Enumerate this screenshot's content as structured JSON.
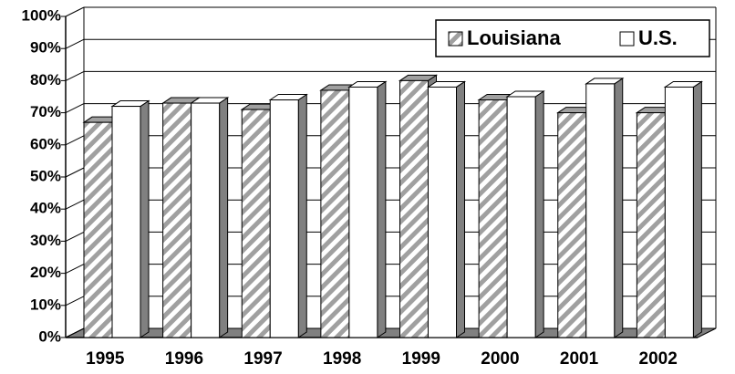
{
  "chart_data": {
    "type": "bar3d",
    "categories": [
      "1995",
      "1996",
      "1997",
      "1998",
      "1999",
      "2000",
      "2001",
      "2002"
    ],
    "series": [
      {
        "name": "Louisiana",
        "color": "#a0a0a0",
        "values": [
          67,
          73,
          71,
          77,
          80,
          74,
          70,
          70
        ]
      },
      {
        "name": "U.S.",
        "color": "#ffffff",
        "values": [
          72,
          73,
          74,
          78,
          78,
          75,
          79,
          78
        ]
      }
    ],
    "ylim": [
      0,
      100
    ],
    "yticks": [
      {
        "value": 0,
        "label": "0%"
      },
      {
        "value": 10,
        "label": "10%"
      },
      {
        "value": 20,
        "label": "20%"
      },
      {
        "value": 30,
        "label": "30%"
      },
      {
        "value": 40,
        "label": "40%"
      },
      {
        "value": 50,
        "label": "50%"
      },
      {
        "value": 60,
        "label": "60%"
      },
      {
        "value": 70,
        "label": "70%"
      },
      {
        "value": 80,
        "label": "80%"
      },
      {
        "value": 90,
        "label": "90%"
      },
      {
        "value": 100,
        "label": "100%"
      }
    ],
    "grid": true
  }
}
